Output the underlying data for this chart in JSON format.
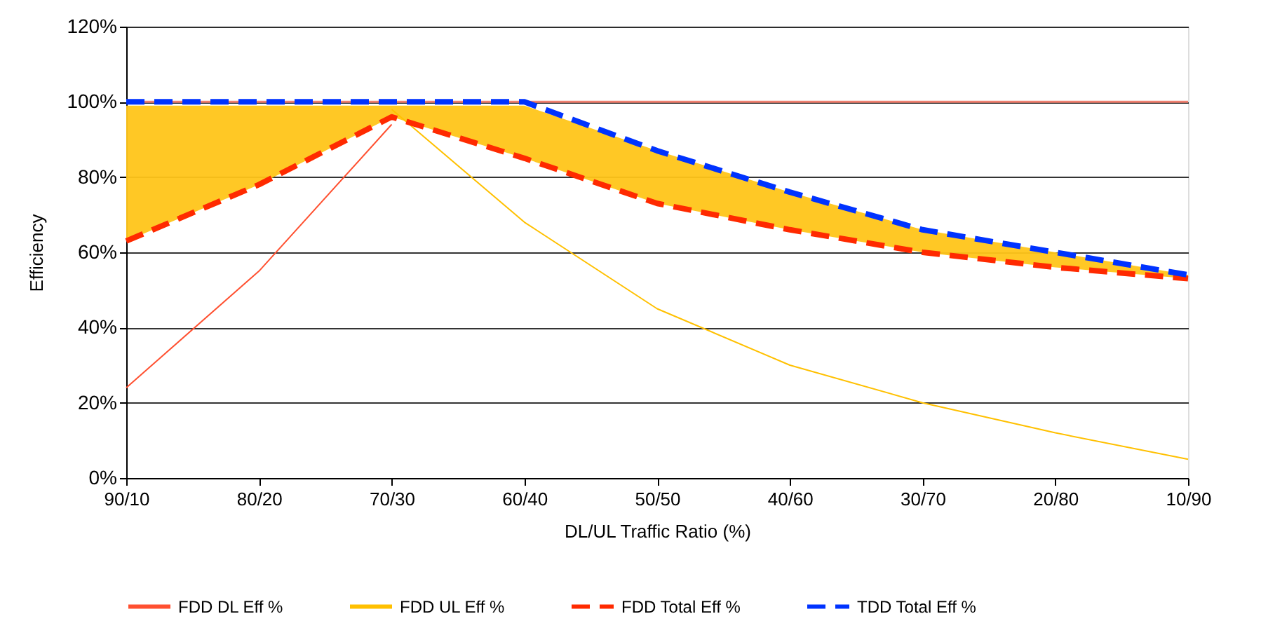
{
  "chart_data": {
    "type": "line",
    "xlabel": "DL/UL Traffic Ratio (%)",
    "ylabel": "Efficiency",
    "categories": [
      "90/10",
      "80/20",
      "70/30",
      "60/40",
      "50/50",
      "40/60",
      "30/70",
      "20/80",
      "10/90"
    ],
    "series": [
      {
        "name": "FDD DL Eff %",
        "color": "#ff5030",
        "line_style": "solid",
        "values": [
          24,
          55,
          94,
          null,
          null,
          null,
          null,
          null,
          null
        ]
      },
      {
        "name": "FDD UL Eff %",
        "color": "#ffc000",
        "line_style": "solid",
        "values": [
          null,
          null,
          98,
          68,
          45,
          30,
          20,
          12,
          5
        ]
      },
      {
        "name": "FDD Total Eff %",
        "color": "#ff2a00",
        "line_style": "dashed",
        "values": [
          63,
          78,
          96,
          85,
          73,
          66,
          60,
          56,
          53
        ]
      },
      {
        "name": "TDD Total Eff %",
        "color": "#0033ff",
        "line_style": "dashed",
        "values": [
          100,
          100,
          100,
          100,
          87,
          76,
          66,
          60,
          54
        ],
        "lower": [
          63,
          78,
          96,
          85,
          73,
          66,
          60,
          56,
          53
        ],
        "upper": [
          99,
          99,
          99,
          99,
          87,
          76,
          66,
          60,
          54
        ]
      }
    ],
    "ylim": [
      0,
      120
    ],
    "yticks": [
      {
        "value": 0,
        "label": "0%"
      },
      {
        "value": 20,
        "label": "20%"
      },
      {
        "value": 40,
        "label": "40%"
      },
      {
        "value": 60,
        "label": "60%"
      },
      {
        "value": 80,
        "label": "80%"
      },
      {
        "value": 100,
        "label": "100%"
      },
      {
        "value": 120,
        "label": "120%"
      }
    ],
    "ref_lines": [
      {
        "axis": "y",
        "value": 100,
        "color": "#f08070"
      }
    ],
    "grid": "y",
    "legend": "bottom"
  }
}
